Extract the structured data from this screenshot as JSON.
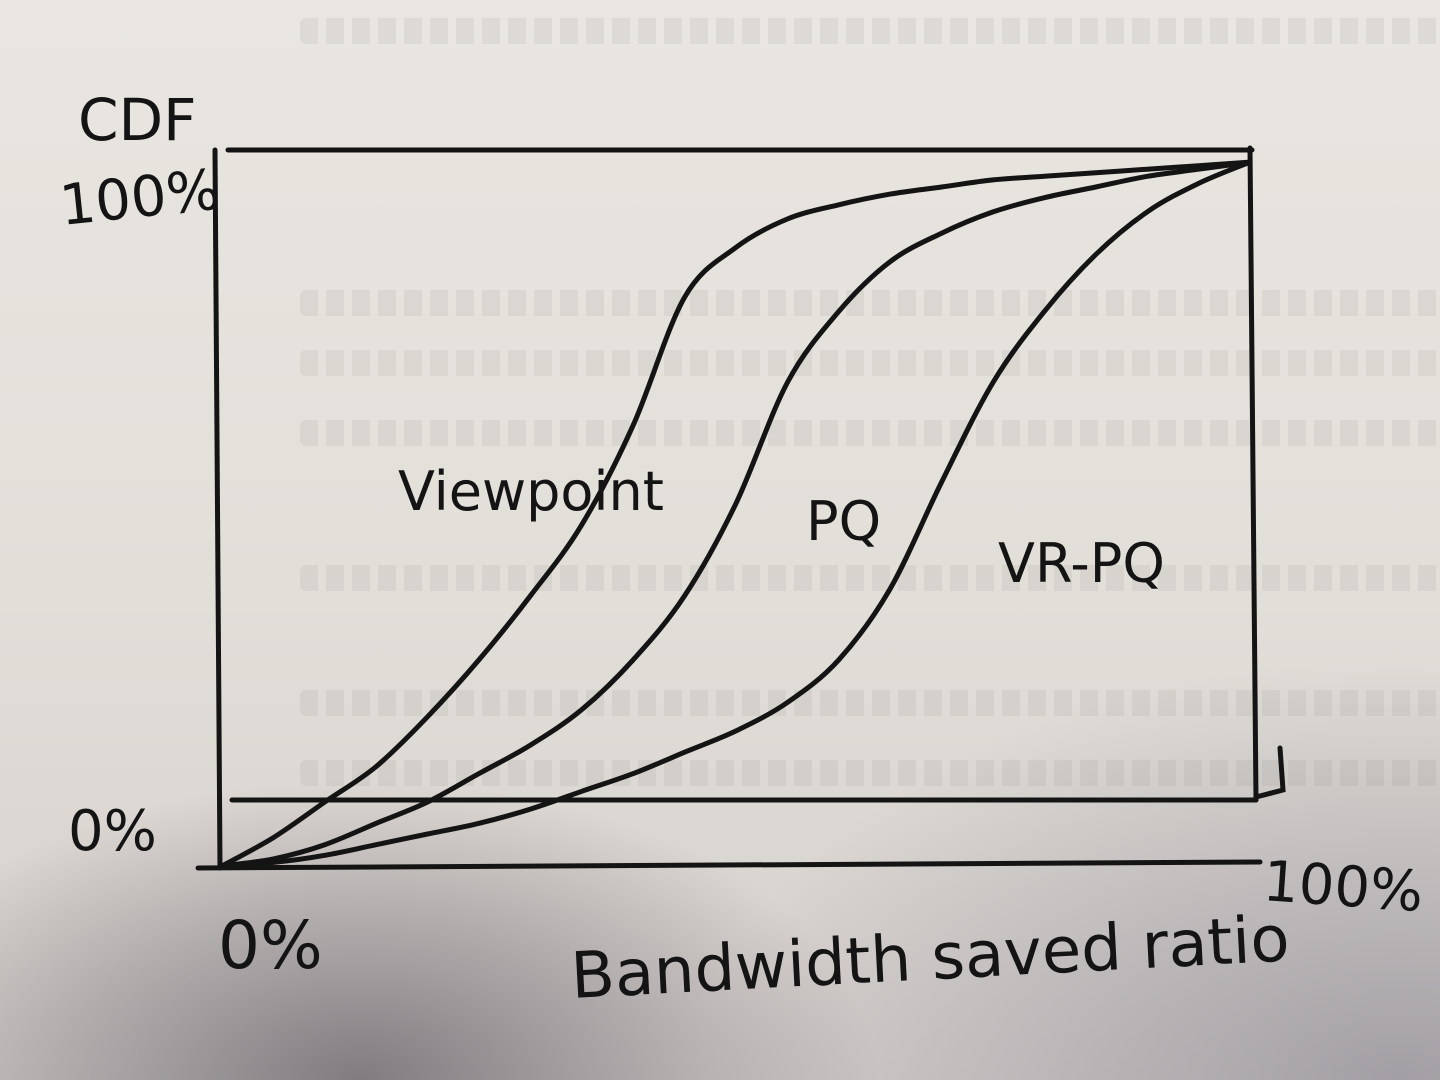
{
  "chart_data": {
    "type": "line",
    "title": "",
    "ylabel": "CDF",
    "xlabel": "Bandwidth saved ratio",
    "xlim": [
      0,
      100
    ],
    "ylim": [
      0,
      100
    ],
    "x_ticks": [
      "0%",
      "100%"
    ],
    "y_ticks": [
      "0%",
      "100%"
    ],
    "grid": false,
    "legend": "none",
    "series": [
      {
        "name": "Viewpoint",
        "x": [
          0,
          5,
          10,
          15,
          20,
          25,
          30,
          35,
          40,
          45,
          50,
          55,
          60,
          65,
          70,
          75,
          80,
          85,
          90,
          95,
          100
        ],
        "values": [
          0,
          4,
          9,
          14,
          21,
          29,
          38,
          48,
          62,
          80,
          87,
          91,
          93,
          94.5,
          95.5,
          96.5,
          97,
          97.5,
          98,
          98.5,
          99
        ]
      },
      {
        "name": "PQ",
        "x": [
          0,
          5,
          10,
          15,
          20,
          25,
          30,
          35,
          40,
          45,
          50,
          55,
          60,
          65,
          70,
          75,
          80,
          85,
          90,
          95,
          100
        ],
        "values": [
          0,
          1,
          3,
          6,
          9,
          13,
          17,
          22,
          29,
          38,
          51,
          68,
          78,
          85,
          89,
          92,
          94,
          95.5,
          97,
          98,
          99
        ]
      },
      {
        "name": "VR-PQ",
        "x": [
          0,
          5,
          10,
          15,
          20,
          25,
          30,
          35,
          40,
          45,
          50,
          55,
          60,
          65,
          70,
          75,
          80,
          85,
          90,
          95,
          100
        ],
        "values": [
          0,
          0.5,
          1.5,
          3,
          4.5,
          6,
          8,
          10.5,
          13,
          16,
          19,
          23,
          29,
          39,
          54,
          68,
          78,
          86,
          92,
          96,
          99
        ]
      }
    ],
    "colors": {
      "ink": "#141414"
    }
  }
}
